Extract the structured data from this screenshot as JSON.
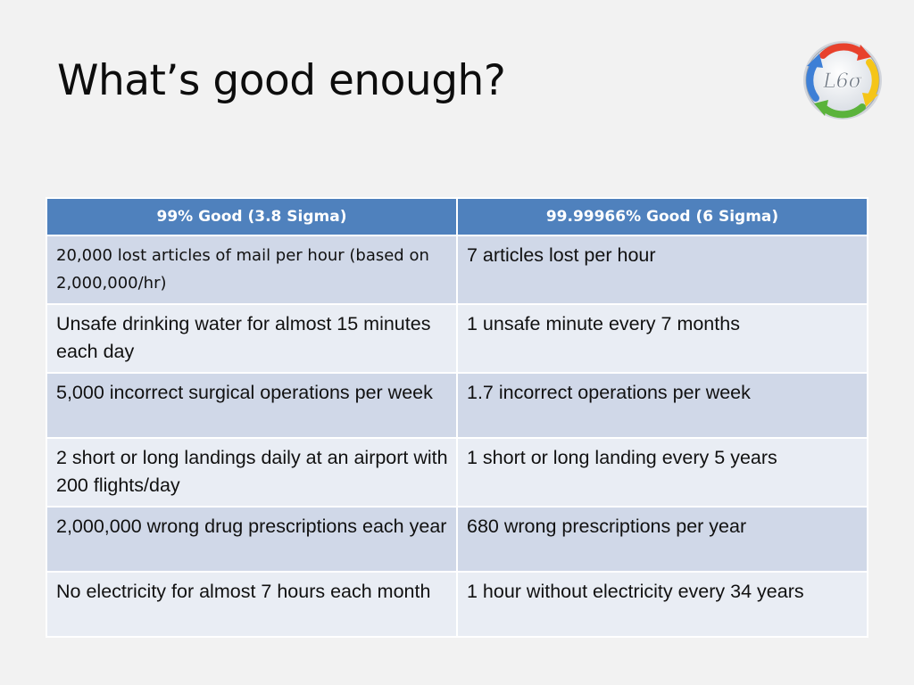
{
  "slide": {
    "title": "What’s good enough?"
  },
  "logo": {
    "text": "L6σ",
    "arrow_colors": [
      "#e8412c",
      "#f5c518",
      "#5bb33b",
      "#3d7fd6"
    ]
  },
  "table": {
    "headers": [
      "99% Good (3.8 Sigma)",
      "99.99966% Good (6 Sigma)"
    ],
    "rows": [
      [
        "20,000 lost articles of mail per hour (based on 2,000,000/hr)",
        "7 articles lost per hour"
      ],
      [
        "Unsafe drinking water for almost 15 minutes each day",
        "1 unsafe minute every 7 months"
      ],
      [
        "5,000 incorrect surgical operations per week",
        "1.7 incorrect operations per week"
      ],
      [
        "2 short or long landings daily at an airport with 200 flights/day",
        "1 short or long landing every 5 years"
      ],
      [
        "2,000,000 wrong drug prescriptions each year",
        "680 wrong prescriptions per year"
      ],
      [
        "No electricity for almost 7 hours each month",
        "1 hour without electricity every 34 years"
      ]
    ]
  }
}
